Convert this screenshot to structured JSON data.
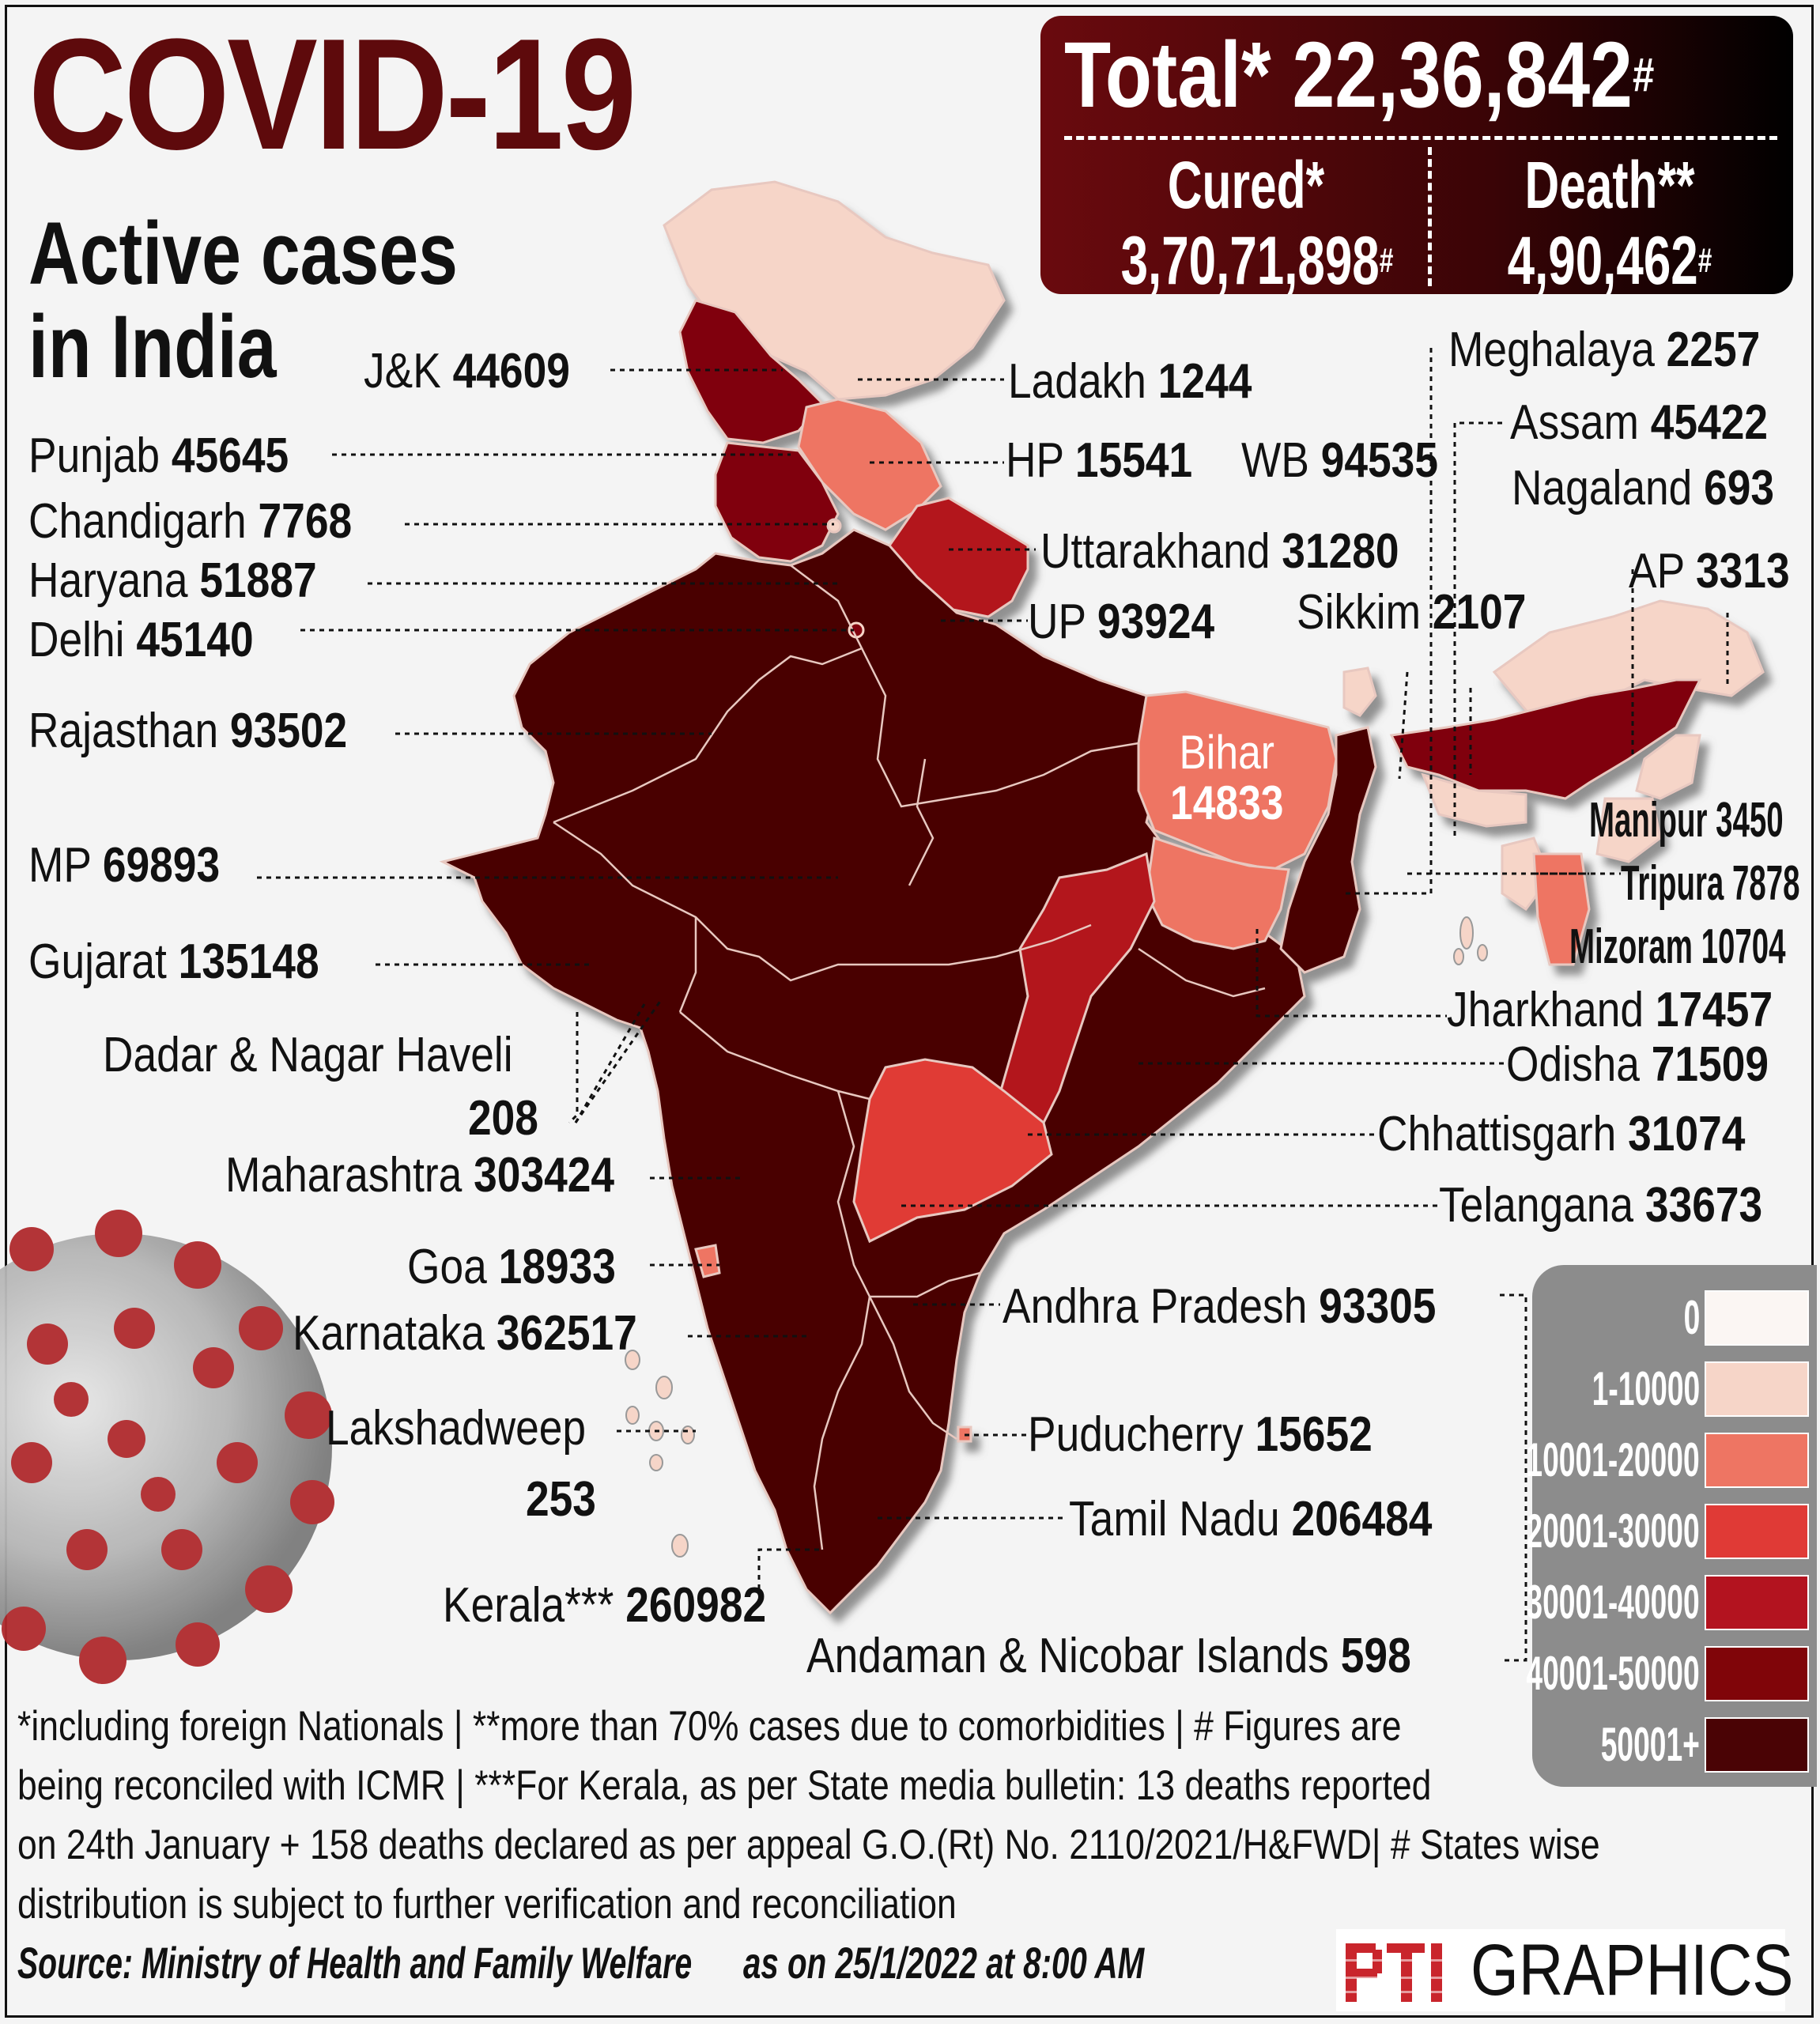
{
  "header": {
    "title": "COVID-19",
    "subtitle_line1": "Active cases",
    "subtitle_line2": "in India"
  },
  "totals": {
    "total_label": "Total*",
    "total_value": "22,36,842",
    "total_mark": "#",
    "cured_label": "Cured*",
    "cured_value": "3,70,71,898",
    "cured_mark": "#",
    "death_label": "Death**",
    "death_value": "4,90,462",
    "death_mark": "#"
  },
  "states": [
    {
      "name": "J&K",
      "value": "44609"
    },
    {
      "name": "Ladakh",
      "value": "1244"
    },
    {
      "name": "Punjab",
      "value": "45645"
    },
    {
      "name": "HP",
      "value": "15541"
    },
    {
      "name": "WB",
      "value": "94535"
    },
    {
      "name": "Chandigarh",
      "value": "7768"
    },
    {
      "name": "Haryana",
      "value": "51887"
    },
    {
      "name": "Uttarakhand",
      "value": "31280"
    },
    {
      "name": "Delhi",
      "value": "45140"
    },
    {
      "name": "UP",
      "value": "93924"
    },
    {
      "name": "Rajasthan",
      "value": "93502"
    },
    {
      "name": "Bihar",
      "value": "14833"
    },
    {
      "name": "MP",
      "value": "69893"
    },
    {
      "name": "Gujarat",
      "value": "135148"
    },
    {
      "name": "Dadar & Nagar Haveli",
      "value": "208"
    },
    {
      "name": "Maharashtra",
      "value": "303424"
    },
    {
      "name": "Goa",
      "value": "18933"
    },
    {
      "name": "Karnataka",
      "value": "362517"
    },
    {
      "name": "Lakshadweep",
      "value": "253"
    },
    {
      "name": "Kerala***",
      "value": "260982"
    },
    {
      "name": "Meghalaya",
      "value": "2257"
    },
    {
      "name": "Assam",
      "value": "45422"
    },
    {
      "name": "Nagaland",
      "value": "693"
    },
    {
      "name": "AP",
      "value": "3313"
    },
    {
      "name": "Sikkim",
      "value": "2107"
    },
    {
      "name": "Manipur",
      "value": "3450"
    },
    {
      "name": "Tripura",
      "value": "7878"
    },
    {
      "name": "Mizoram",
      "value": "10704"
    },
    {
      "name": "Jharkhand",
      "value": "17457"
    },
    {
      "name": "Odisha",
      "value": "71509"
    },
    {
      "name": "Chhattisgarh",
      "value": "31074"
    },
    {
      "name": "Telangana",
      "value": "33673"
    },
    {
      "name": "Andhra Pradesh",
      "value": "93305"
    },
    {
      "name": "Puducherry",
      "value": "15652"
    },
    {
      "name": "Tamil Nadu",
      "value": "206484"
    },
    {
      "name": "Andaman & Nicobar Islands",
      "value": "598"
    }
  ],
  "legend": [
    {
      "label": "0",
      "color": "#fbf6f3"
    },
    {
      "label": "1-10000",
      "color": "#f6d5c8"
    },
    {
      "label": "10001-20000",
      "color": "#ee7563"
    },
    {
      "label": "20001-30000",
      "color": "#e03a36"
    },
    {
      "label": "30001-40000",
      "color": "#b3131f"
    },
    {
      "label": "40001-50000",
      "color": "#800509"
    },
    {
      "label": "50001+",
      "color": "#4a0305"
    }
  ],
  "footnotes": [
    "*including foreign Nationals | **more than 70% cases due to comorbidities | # Figures are",
    "being reconciled with ICMR  | ***For Kerala, as per State media bulletin: 13 deaths reported",
    "on 24th January + 158 deaths declared as per appeal G.O.(Rt) No. 2110/2021/H&FWD| # States wise",
    "distribution is subject to further verification and reconciliation"
  ],
  "source": "Source: Ministry of Health and Family Welfare",
  "as_on": "as on 25/1/2022 at 8:00 AM",
  "branding": {
    "logo_text": "PTI",
    "graphics": "GRAPHICS"
  }
}
